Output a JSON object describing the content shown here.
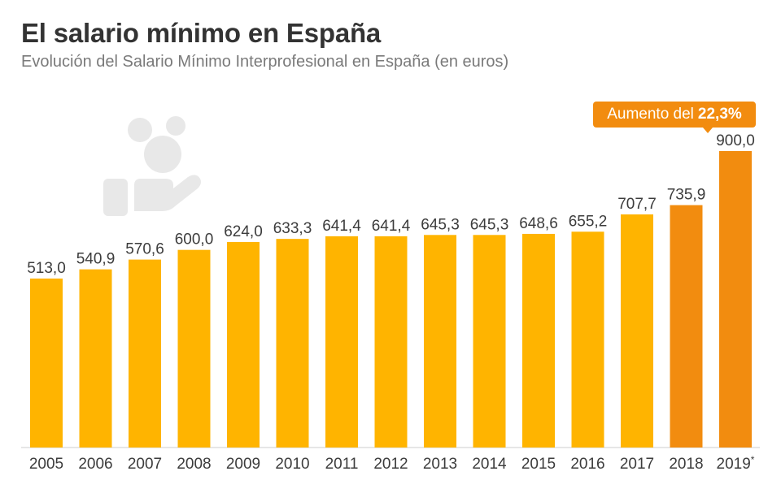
{
  "title": "El salario mínimo en España",
  "subtitle": "Evolución del Salario Mínimo Interprofesional en España (en euros)",
  "icon": "hand-holding-coins-icon",
  "colors": {
    "bar": "#ffb400",
    "highlight": "#f28c0f",
    "label": "#3c3c3c",
    "baseline": "#cccccc",
    "icon": "#e5e5e5"
  },
  "callout": {
    "prefix": "Aumento del",
    "value": "22,3%"
  },
  "chart_data": {
    "type": "bar",
    "title": "El salario mínimo en España",
    "subtitle": "Evolución del Salario Mínimo Interprofesional en España (en euros)",
    "xlabel": "",
    "ylabel": "",
    "categories": [
      "2005",
      "2006",
      "2007",
      "2008",
      "2009",
      "2010",
      "2011",
      "2012",
      "2013",
      "2014",
      "2015",
      "2016",
      "2017",
      "2018",
      "2019*"
    ],
    "values": [
      513.0,
      540.9,
      570.6,
      600.0,
      624.0,
      633.3,
      641.4,
      641.4,
      645.3,
      645.3,
      648.6,
      655.2,
      707.7,
      735.9,
      900.0
    ],
    "value_labels": [
      "513,0",
      "540,9",
      "570,6",
      "600,0",
      "624,0",
      "633,3",
      "641,4",
      "641,4",
      "645,3",
      "645,3",
      "648,6",
      "655,2",
      "707,7",
      "735,9",
      "900,0"
    ],
    "highlighted_categories": [
      "2018",
      "2019*"
    ],
    "ylim": [
      0,
      900
    ],
    "grid": false,
    "legend": "none"
  }
}
